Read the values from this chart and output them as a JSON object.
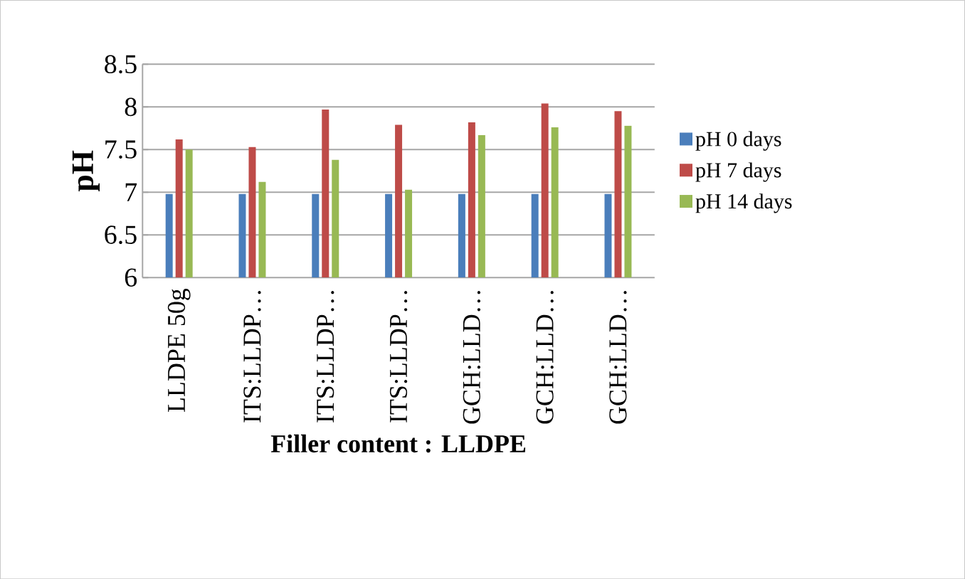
{
  "chart_data": {
    "type": "bar",
    "xlabel": "Filler content : LLDPE",
    "ylabel": "pH",
    "categories": [
      "LLDPE 50g",
      "ITS:LLDP…",
      "ITS:LLDP…",
      "ITS:LLDP…",
      "GCH:LLD…",
      "GCH:LLD…",
      "GCH:LLD…"
    ],
    "series": [
      {
        "name": "pH 0 days",
        "color": "#4a7ebb",
        "values": [
          6.98,
          6.98,
          6.98,
          6.98,
          6.98,
          6.98,
          6.98
        ]
      },
      {
        "name": "pH 7 days",
        "color": "#be4b48",
        "values": [
          7.62,
          7.53,
          7.97,
          7.79,
          7.82,
          8.04,
          7.95
        ]
      },
      {
        "name": "pH 14 days",
        "color": "#98b954",
        "values": [
          7.5,
          7.12,
          7.38,
          7.03,
          7.67,
          7.76,
          7.78
        ]
      }
    ],
    "ylim": [
      6,
      8.5
    ],
    "yticks": [
      6,
      6.5,
      7,
      7.5,
      8,
      8.5
    ],
    "grid": "y",
    "legend": "right"
  }
}
